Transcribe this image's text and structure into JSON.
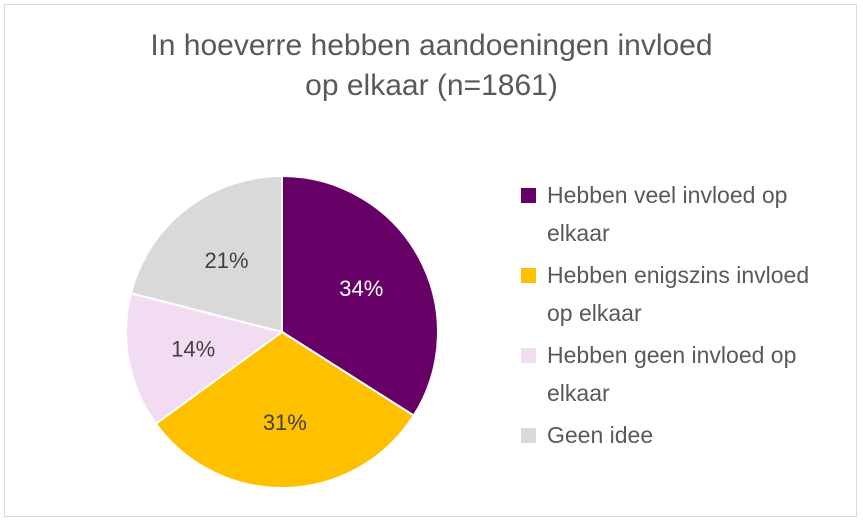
{
  "chart_data": {
    "type": "pie",
    "title_lines": [
      "In hoeverre hebben aandoeningen invloed",
      "op elkaar (n=1861)"
    ],
    "slices": [
      {
        "label": "Hebben veel invloed op elkaar",
        "legend_lines": [
          "Hebben veel invloed op",
          "elkaar"
        ],
        "value": 34,
        "display": "34%",
        "color": "#660066",
        "text_color": "#ffffff"
      },
      {
        "label": "Hebben enigszins invloed op elkaar",
        "legend_lines": [
          "Hebben enigszins invloed",
          "op elkaar"
        ],
        "value": 31,
        "display": "31%",
        "color": "#ffc000",
        "text_color": "#404040"
      },
      {
        "label": "Hebben geen invloed op elkaar",
        "legend_lines": [
          "Hebben geen invloed op",
          "elkaar"
        ],
        "value": 14,
        "display": "14%",
        "color": "#f2dcf2",
        "text_color": "#404040"
      },
      {
        "label": "Geen idee",
        "legend_lines": [
          "Geen idee"
        ],
        "value": 21,
        "display": "21%",
        "color": "#d9d9d9",
        "text_color": "#404040"
      }
    ],
    "legend_position": "right"
  }
}
